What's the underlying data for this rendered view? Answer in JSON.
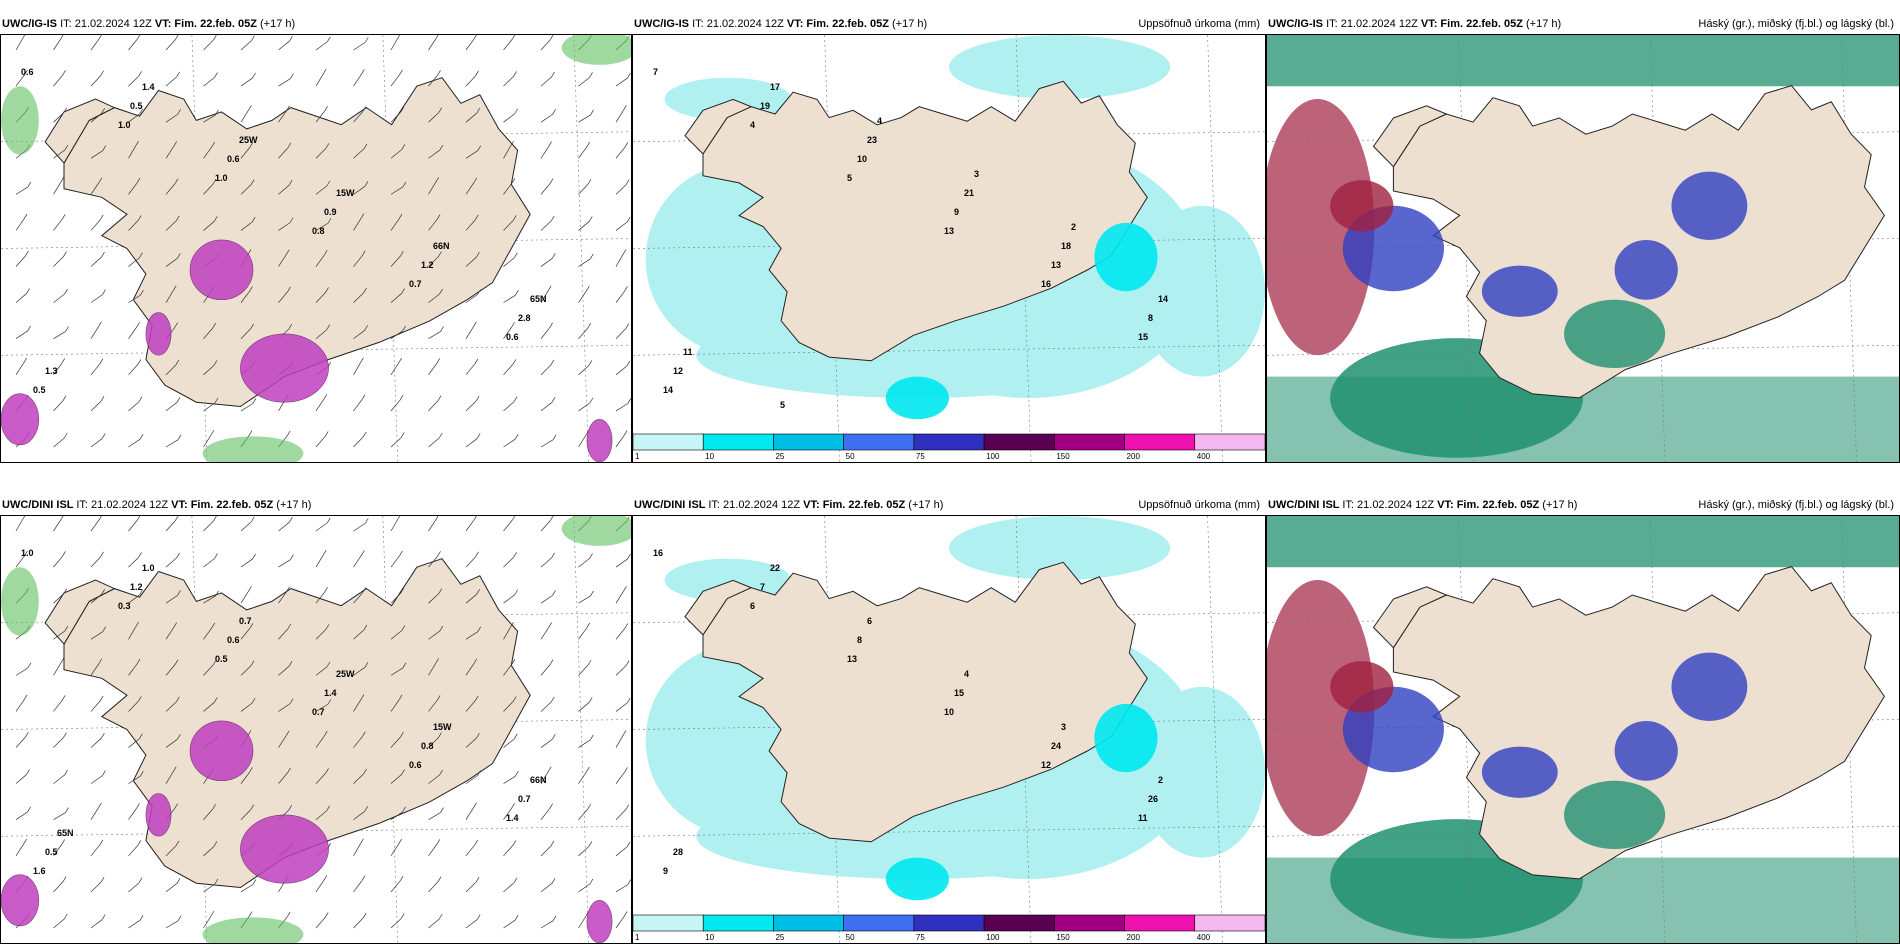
{
  "panels": [
    {
      "id": "r1c1",
      "title_model": "UWC/IG-IS",
      "it_label": "IT:",
      "it_value": "21.02.2024 12Z",
      "vt_label": "VT:",
      "vt_value": "Fim. 22.feb. 05Z",
      "lead": "(+17 h)",
      "right_title": "",
      "type": "wind",
      "labels": [
        "0.6",
        "1.0",
        "1.0",
        "0.8",
        "0.7",
        "0.6",
        "0.5",
        "0.5",
        "0.6",
        "0.9",
        "1.2",
        "2.8",
        "1.3",
        "1.4",
        "25W",
        "15W",
        "66N",
        "65N"
      ]
    },
    {
      "id": "r1c2",
      "title_model": "UWC/IG-IS",
      "it_label": "IT:",
      "it_value": "21.02.2024 12Z",
      "vt_label": "VT:",
      "vt_value": "Fim. 22.feb. 05Z",
      "lead": "(+17 h)",
      "right_title": "Uppsöfnuð úrkoma (mm)",
      "type": "precip",
      "labels": [
        "7",
        "4",
        "5",
        "13",
        "16",
        "15",
        "14",
        "19",
        "10",
        "9",
        "13",
        "8",
        "12",
        "17",
        "23",
        "21",
        "18",
        "14",
        "11",
        "5",
        "4",
        "3",
        "2"
      ]
    },
    {
      "id": "r1c3",
      "title_model": "UWC/IG-IS",
      "it_label": "IT:",
      "it_value": "21.02.2024 12Z",
      "vt_label": "VT:",
      "vt_value": "Fim. 22.feb. 05Z",
      "lead": "(+17 h)",
      "right_title": "Háský (gr.), miðský (fj.bl.) og lágský (bl.)",
      "type": "cloud",
      "labels": []
    },
    {
      "id": "r2c1",
      "title_model": "UWC/DINI ISL",
      "it_label": "IT:",
      "it_value": "21.02.2024 12Z",
      "vt_label": "VT:",
      "vt_value": "Fim. 22.feb. 05Z",
      "lead": "(+17 h)",
      "right_title": "",
      "type": "wind",
      "labels": [
        "1.0",
        "0.3",
        "0.5",
        "0.7",
        "0.6",
        "1.4",
        "1.6",
        "1.2",
        "0.6",
        "1.4",
        "0.8",
        "0.7",
        "0.5",
        "1.0",
        "0.7",
        "25W",
        "15W",
        "66N",
        "65N"
      ]
    },
    {
      "id": "r2c2",
      "title_model": "UWC/DINI ISL",
      "it_label": "IT:",
      "it_value": "21.02.2024 12Z",
      "vt_label": "VT:",
      "vt_value": "Fim. 22.feb. 05Z",
      "lead": "(+17 h)",
      "right_title": "Uppsöfnuð úrkoma (mm)",
      "type": "precip",
      "labels": [
        "16",
        "6",
        "13",
        "10",
        "12",
        "11",
        "9",
        "7",
        "8",
        "15",
        "24",
        "26",
        "28",
        "22",
        "6",
        "4",
        "3",
        "2"
      ]
    },
    {
      "id": "r2c3",
      "title_model": "UWC/DINI ISL",
      "it_label": "IT:",
      "it_value": "21.02.2024 12Z",
      "vt_label": "VT:",
      "vt_value": "Fim. 22.feb. 05Z",
      "lead": "(+17 h)",
      "right_title": "Háský (gr.), miðský (fj.bl.) og lágský (bl.)",
      "type": "cloud",
      "labels": []
    }
  ],
  "colorbar": {
    "ticks": [
      "1",
      "10",
      "25",
      "50",
      "75",
      "100",
      "150",
      "200",
      "400"
    ],
    "colors": [
      "#c8f5f5",
      "#00e8f0",
      "#00bfe6",
      "#3d6ff0",
      "#3030c0",
      "#5a0050",
      "#a00080",
      "#f010b0",
      "#f4b8f0"
    ]
  },
  "colors": {
    "land": "#eee0d0",
    "ocean_precip": "#b0f0f0",
    "wind_purple": "#c040c0",
    "wind_green": "#60c060",
    "cloud_high": "#209070",
    "cloud_mid": "#a02040",
    "cloud_low": "#3040c0"
  }
}
